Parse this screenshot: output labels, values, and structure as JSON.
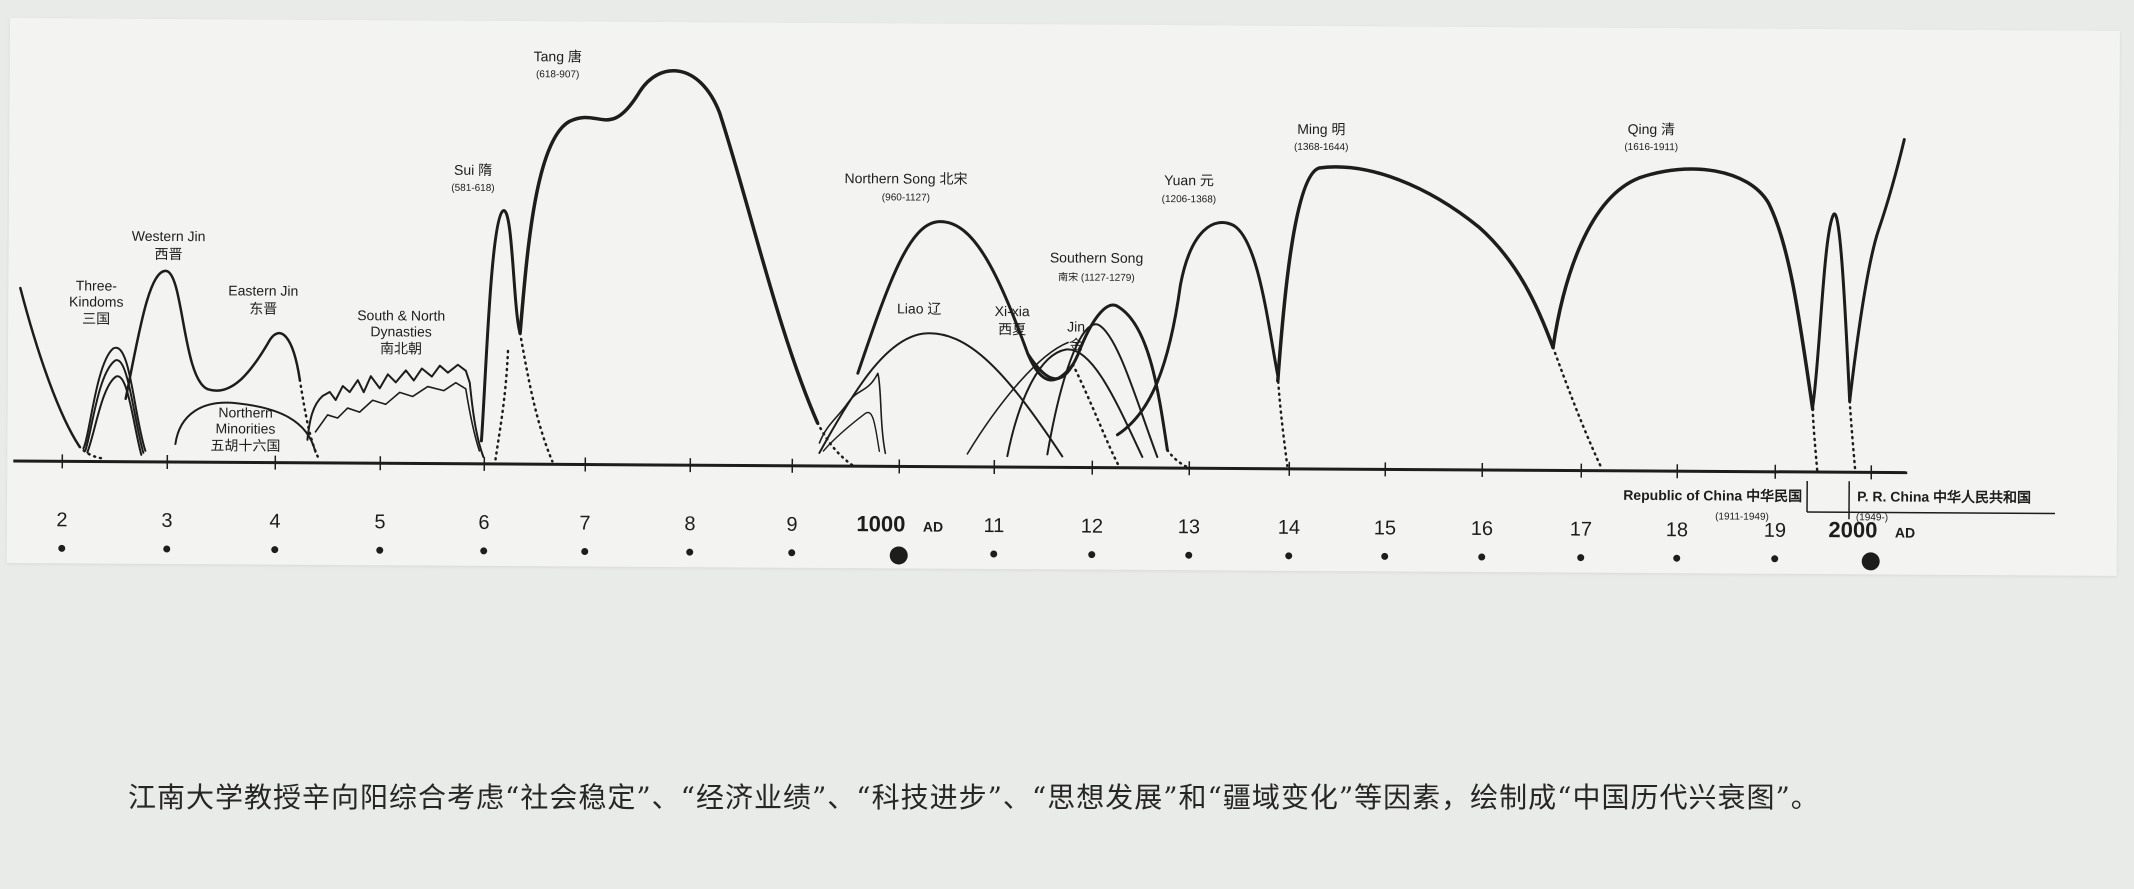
{
  "dynasties": [
    {
      "id": "three-kingdoms",
      "name": "Three-\nKindoms",
      "zh": "三国",
      "years": ""
    },
    {
      "id": "western-jin",
      "name": "Western Jin",
      "zh": "西晋",
      "years": ""
    },
    {
      "id": "eastern-jin",
      "name": "Eastern Jin",
      "zh": "东晋",
      "years": ""
    },
    {
      "id": "northern-minorities",
      "name": "Northern\nMinorities",
      "zh": "五胡十六国",
      "years": ""
    },
    {
      "id": "south-north",
      "name": "South & North\nDynasties",
      "zh": "南北朝",
      "years": ""
    },
    {
      "id": "sui",
      "name": "Sui",
      "zh": "隋",
      "years": "(581-618)"
    },
    {
      "id": "tang",
      "name": "Tang",
      "zh": "唐",
      "years": "(618-907)"
    },
    {
      "id": "northern-song",
      "name": "Northern Song",
      "zh": "北宋",
      "years": "(960-1127)"
    },
    {
      "id": "liao",
      "name": "Liao",
      "zh": "辽",
      "years": ""
    },
    {
      "id": "xi-xia",
      "name": "Xi-xia",
      "zh": "西夏",
      "years": ""
    },
    {
      "id": "southern-song",
      "name": "Southern Song",
      "zh": "南宋",
      "years": "(1127-1279)"
    },
    {
      "id": "jin",
      "name": "Jin",
      "zh": "金",
      "years": ""
    },
    {
      "id": "yuan",
      "name": "Yuan",
      "zh": "元",
      "years": "(1206-1368)"
    },
    {
      "id": "ming",
      "name": "Ming",
      "zh": "明",
      "years": "(1368-1644)"
    },
    {
      "id": "qing",
      "name": "Qing",
      "zh": "清",
      "years": "(1616-1911)"
    }
  ],
  "republic": {
    "name": "Republic of China",
    "zh": "中华民国",
    "years": "(1911-1949)"
  },
  "prc": {
    "name": "P. R. China",
    "zh": "中华人民共和国",
    "years": "(1949-)"
  },
  "axis": {
    "ticks": [
      "2",
      "3",
      "4",
      "5",
      "6",
      "7",
      "8",
      "9",
      "1000",
      "11",
      "12",
      "13",
      "14",
      "15",
      "16",
      "17",
      "18",
      "19",
      "2000"
    ],
    "ad_suffix": "AD",
    "major": [
      "1000",
      "2000"
    ]
  },
  "caption": "江南大学教授辛向阳综合考虑“社会稳定”、“经济业绩”、“科技进步”、“思想发展”和“疆域变化”等因素，绘制成“中国历代兴衰图”。",
  "colors": {
    "ink": "#1d1d1d",
    "paper": "#f3f4f1",
    "background": "#e9ebe8"
  }
}
